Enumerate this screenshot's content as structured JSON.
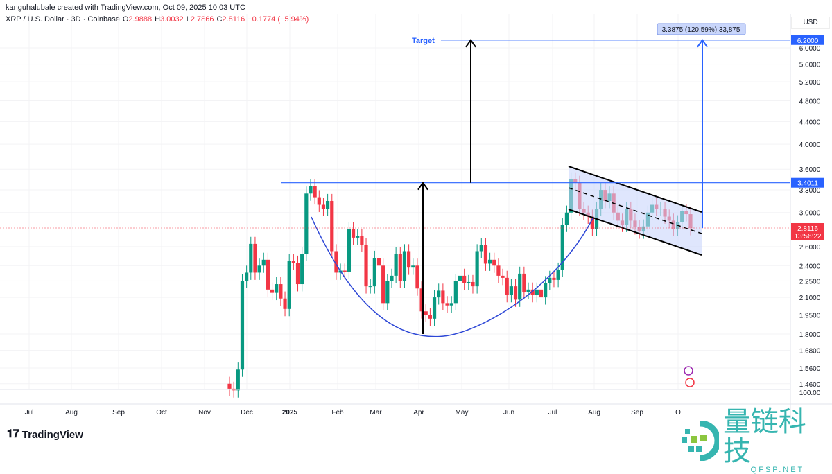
{
  "header": {
    "credit": "kanguhalubale created with TradingView.com, Oct 09, 2025 10:03 UTC",
    "symbol": "XRP / U.S. Dollar · 3D · Coinbase",
    "o_label": "O",
    "o": "2.9888",
    "h_label": "H",
    "h": "3.0032",
    "l_label": "L",
    "l": "2.7866",
    "c_label": "C",
    "c": "2.8116",
    "change": "−0.1774 (−5.94%)"
  },
  "currency": "USD",
  "colors": {
    "up": "#089981",
    "down": "#f23645",
    "drawing": "#2962ff",
    "arrow": "#000000",
    "flag_fill": "#c9d6fb"
  },
  "chart_data": {
    "type": "candlestick",
    "y_scale": "log",
    "ylim": [
      1.4,
      6.5
    ],
    "y_ticks": [
      "6.0000",
      "5.6000",
      "5.2000",
      "4.8000",
      "4.4000",
      "4.0000",
      "3.6000",
      "3.3000",
      "3.0000",
      "2.6000",
      "2.4000",
      "2.2500",
      "2.1000",
      "1.9500",
      "1.8000",
      "1.6800",
      "1.5600",
      "1.4600"
    ],
    "x_ticks": [
      "Jul",
      "Aug",
      "Sep",
      "Oct",
      "Nov",
      "Dec",
      "2025",
      "Feb",
      "Mar",
      "Apr",
      "May",
      "Jun",
      "Jul",
      "Aug",
      "Sep",
      "O"
    ],
    "first_open": 1.46,
    "closes": [
      1.43,
      1.42,
      1.55,
      2.25,
      2.33,
      2.63,
      2.33,
      2.4,
      2.46,
      2.17,
      2.14,
      2.22,
      2.09,
      2.0,
      2.45,
      2.43,
      2.22,
      2.52,
      3.25,
      3.35,
      3.2,
      3.1,
      3.05,
      3.15,
      2.55,
      2.33,
      2.35,
      2.34,
      2.8,
      2.7,
      2.72,
      2.62,
      2.2,
      2.2,
      2.48,
      2.4,
      2.05,
      2.25,
      2.3,
      2.52,
      2.25,
      2.55,
      2.38,
      2.4,
      2.18,
      1.98,
      1.95,
      1.92,
      2.1,
      2.16,
      2.05,
      2.03,
      2.05,
      2.25,
      2.3,
      2.23,
      2.24,
      2.2,
      2.55,
      2.62,
      2.42,
      2.46,
      2.4,
      2.3,
      2.28,
      2.12,
      2.2,
      2.08,
      2.32,
      2.15,
      2.17,
      2.12,
      2.17,
      2.1,
      2.23,
      2.28,
      2.26,
      2.36,
      2.85,
      3.0,
      3.45,
      3.4,
      3.05,
      3.0,
      2.95,
      2.8,
      3.05,
      3.3,
      3.15,
      3.25,
      3.0,
      2.9,
      2.85,
      3.05,
      2.9,
      2.82,
      2.77,
      2.83,
      3.0,
      3.1,
      3.05,
      3.05,
      2.95,
      2.9,
      2.8,
      2.88,
      3.02,
      2.98,
      2.81
    ],
    "last_price": "2.8116",
    "countdown": "13:56:22",
    "resistance": {
      "value": 3.4011,
      "label": "3.4011"
    },
    "target": {
      "value": 6.2,
      "label": "6.2000",
      "text": "Target"
    },
    "measure": {
      "text": "3.3875 (120.59%) 33,875"
    },
    "pattern": "cup and handle with descending flag"
  },
  "partial_axis_label": "100.00",
  "branding": {
    "logo": "TradingView",
    "watermark_cn": "量链科技",
    "watermark_en": "QFSP.NET"
  }
}
